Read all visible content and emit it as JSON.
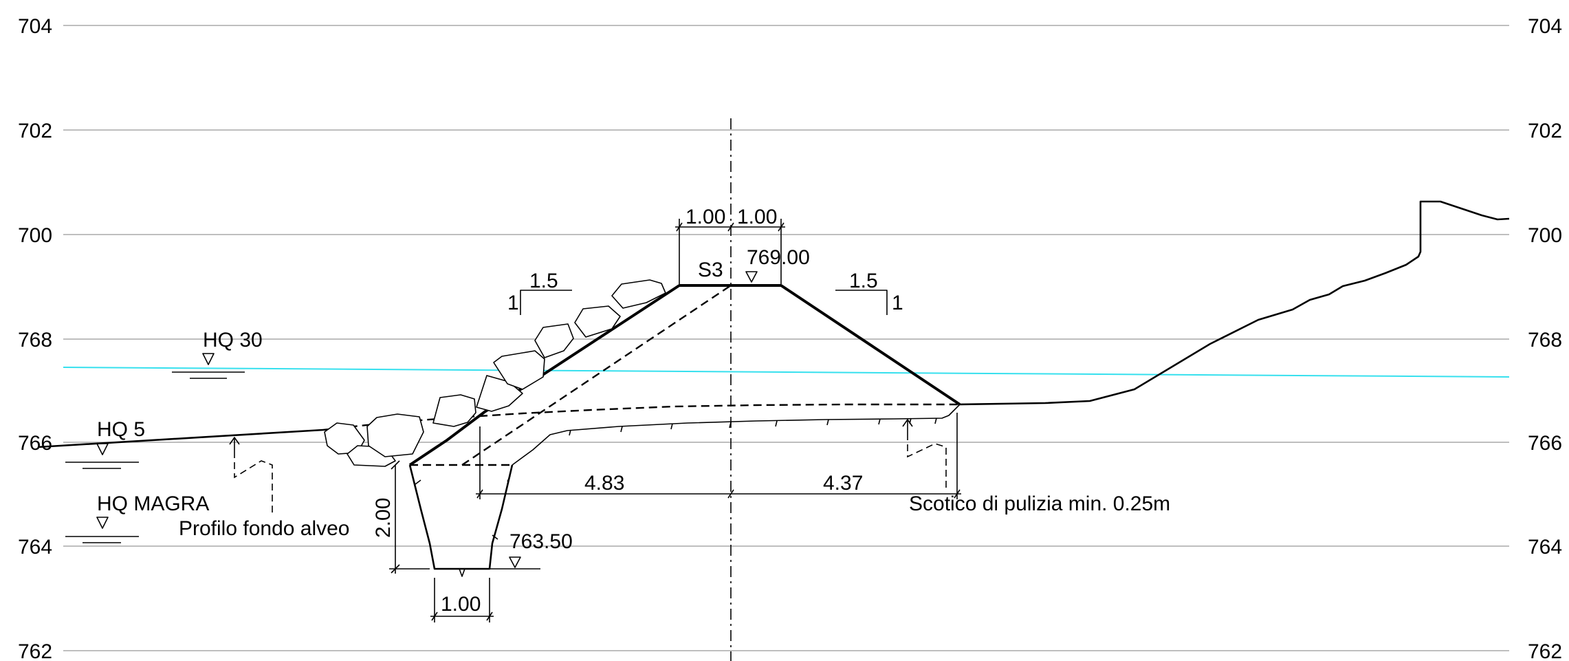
{
  "y_axis": {
    "ticks": [
      {
        "value": 704,
        "label": "704"
      },
      {
        "value": 702,
        "label": "702"
      },
      {
        "value": 700,
        "label": "700"
      },
      {
        "value": 768,
        "label": "768"
      },
      {
        "value": 766,
        "label": "766"
      },
      {
        "value": 764,
        "label": "764"
      },
      {
        "value": 762,
        "label": "762"
      }
    ]
  },
  "labels": {
    "section": "S3",
    "crest_level": "769.00",
    "trench_level": "763.50",
    "slope_left_h": "1.5",
    "slope_left_v": "1",
    "slope_right_h": "1.5",
    "slope_right_v": "1",
    "crest_width_left": "1.00",
    "crest_width_right": "1.00",
    "base_left": "4.83",
    "base_right": "4.37",
    "trench_depth": "2.00",
    "trench_width": "1.00",
    "hq30": "HQ 30",
    "hq5": "HQ 5",
    "hq_magra": "HQ MAGRA",
    "riverbed_profile": "Profilo fondo alveo",
    "stripping": "Scotico di pulizia min. 0.25m"
  },
  "colors": {
    "water_line": "#36e0ee",
    "grid": "#a9a9a9",
    "ink": "#000000"
  }
}
